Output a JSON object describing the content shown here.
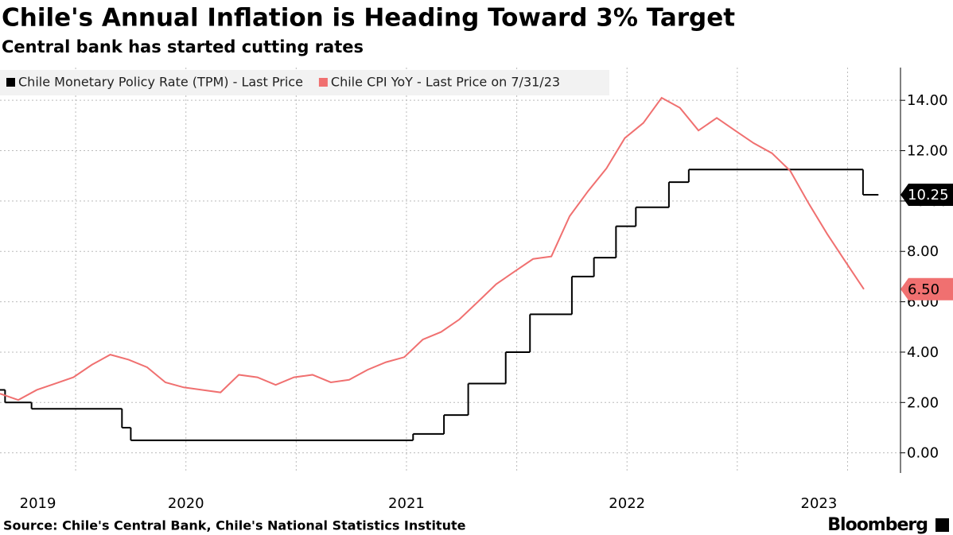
{
  "chart_data": {
    "type": "line",
    "title": "Chile's Annual Inflation is Heading Toward 3% Target",
    "subtitle": "Central bank has started cutting rates",
    "source": "Source: Chile's Central Bank, Chile's National Statistics Institute",
    "brand": "Bloomberg",
    "xlim": [
      2019.657,
      2023.74
    ],
    "xticks": [
      2019,
      2020,
      2021,
      2022,
      2023
    ],
    "ylim": [
      -0.8,
      15.3
    ],
    "yticks": [
      {
        "value": 0,
        "label": "0.00"
      },
      {
        "value": 2,
        "label": "2.00"
      },
      {
        "value": 4,
        "label": "4.00"
      },
      {
        "value": 6,
        "label": "6.00"
      },
      {
        "value": 8,
        "label": "8.00"
      },
      {
        "value": 10,
        "label": "10.00"
      },
      {
        "value": 12,
        "label": "12.00"
      },
      {
        "value": 14,
        "label": "14.00"
      }
    ],
    "grid": true,
    "legend": "top-left",
    "series": [
      {
        "name": "Chile Monetary Policy Rate (TPM) - Last Price",
        "color": "#000000",
        "step": true,
        "x": [
          2019.657,
          2019.68,
          2019.8,
          2020.21,
          2020.25,
          2021.53,
          2021.67,
          2021.78,
          2021.95,
          2022.06,
          2022.25,
          2022.35,
          2022.45,
          2022.54,
          2022.69,
          2022.78,
          2023.57,
          2023.64
        ],
        "values": [
          2.5,
          2.0,
          1.75,
          1.0,
          0.5,
          0.75,
          1.5,
          2.75,
          4.0,
          5.5,
          7.0,
          7.75,
          9.0,
          9.75,
          10.75,
          11.25,
          10.25,
          10.25
        ],
        "last_value_label": "10.25"
      },
      {
        "name": "Chile CPI YoY - Last Price on 7/31/23",
        "color": "#f07070",
        "step": false,
        "x": [
          2019.657,
          2019.74,
          2019.824,
          2019.907,
          2019.99,
          2020.074,
          2020.157,
          2020.24,
          2020.324,
          2020.407,
          2020.49,
          2020.574,
          2020.657,
          2020.74,
          2020.824,
          2020.907,
          2020.99,
          2021.074,
          2021.157,
          2021.24,
          2021.324,
          2021.407,
          2021.49,
          2021.574,
          2021.657,
          2021.74,
          2021.824,
          2021.907,
          2021.99,
          2022.074,
          2022.157,
          2022.24,
          2022.324,
          2022.407,
          2022.49,
          2022.574,
          2022.657,
          2022.74,
          2022.824,
          2022.907,
          2022.99,
          2023.074,
          2023.157,
          2023.24,
          2023.324,
          2023.407,
          2023.49,
          2023.574
        ],
        "values": [
          2.35,
          2.1,
          2.5,
          2.75,
          3.0,
          3.5,
          3.9,
          3.7,
          3.4,
          2.8,
          2.6,
          2.5,
          2.4,
          3.1,
          3.0,
          2.7,
          3.0,
          3.1,
          2.8,
          2.9,
          3.3,
          3.6,
          3.8,
          4.5,
          4.8,
          5.3,
          6.0,
          6.7,
          7.2,
          7.7,
          7.8,
          9.4,
          10.4,
          11.3,
          12.5,
          13.1,
          14.1,
          13.7,
          12.8,
          13.3,
          12.8,
          12.3,
          11.9,
          11.2,
          9.9,
          8.7,
          7.6,
          6.5
        ],
        "last_value_label": "6.50"
      }
    ]
  }
}
